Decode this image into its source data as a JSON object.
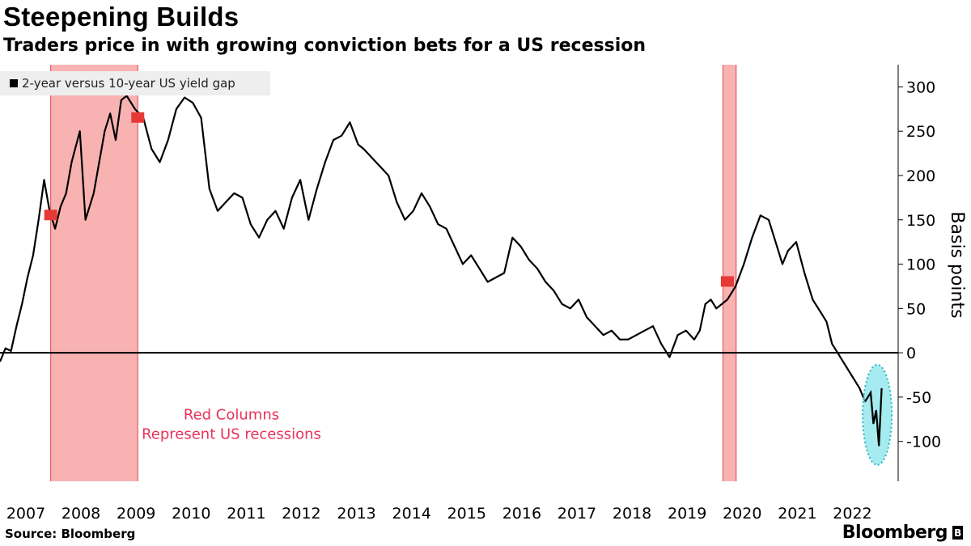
{
  "title": "Steepening Builds",
  "subtitle": "Traders price in with growing conviction bets for a US recession",
  "source": "Source: Bloomberg",
  "brand": "Bloomberg",
  "brand_icon": "B",
  "colors": {
    "line": "#000000",
    "recession_fill": "#f8a5a5",
    "highlight_fill": "#7fe3e8",
    "highlight_stroke": "#29b8c6",
    "annotation": "#e8325a",
    "marker": "#e53935"
  },
  "icons": {
    "recession_marker": "rec-flag-icon",
    "highlight": "dotted-ellipse-highlight"
  },
  "chart_data": {
    "type": "line",
    "title": "Steepening Builds",
    "subtitle": "Traders price in with growing conviction bets for a US recession",
    "ylabel": "Basis points",
    "xlabel": "",
    "ylim": [
      -145,
      325
    ],
    "xlim": [
      2007.0,
      2023.3
    ],
    "yticks": [
      300,
      250,
      200,
      150,
      100,
      50,
      0,
      -50,
      -100
    ],
    "xticks": [
      "2007",
      "2008",
      "2009",
      "2010",
      "2011",
      "2012",
      "2013",
      "2014",
      "2015",
      "2016",
      "2017",
      "2018",
      "2019",
      "2020",
      "2021",
      "2022"
    ],
    "grid": false,
    "legend_position": "top-left",
    "zero_line": true,
    "series": [
      {
        "name": "2-year versus 10-year US yield gap",
        "x": [
          2007.0,
          2007.1,
          2007.2,
          2007.3,
          2007.4,
          2007.5,
          2007.6,
          2007.7,
          2007.8,
          2007.9,
          2008.0,
          2008.1,
          2008.2,
          2008.3,
          2008.45,
          2008.55,
          2008.7,
          2008.8,
          2008.9,
          2009.0,
          2009.1,
          2009.2,
          2009.3,
          2009.45,
          2009.6,
          2009.75,
          2009.9,
          2010.05,
          2010.2,
          2010.35,
          2010.5,
          2010.65,
          2010.8,
          2010.95,
          2011.1,
          2011.25,
          2011.4,
          2011.55,
          2011.7,
          2011.85,
          2012.0,
          2012.15,
          2012.3,
          2012.45,
          2012.6,
          2012.75,
          2012.9,
          2013.05,
          2013.2,
          2013.35,
          2013.5,
          2013.6,
          2013.75,
          2013.9,
          2014.05,
          2014.2,
          2014.35,
          2014.5,
          2014.65,
          2014.8,
          2014.95,
          2015.1,
          2015.25,
          2015.4,
          2015.55,
          2015.7,
          2015.85,
          2016.0,
          2016.15,
          2016.3,
          2016.45,
          2016.6,
          2016.75,
          2016.9,
          2017.05,
          2017.2,
          2017.35,
          2017.5,
          2017.65,
          2017.8,
          2017.95,
          2018.1,
          2018.25,
          2018.4,
          2018.55,
          2018.7,
          2018.85,
          2019.0,
          2019.15,
          2019.3,
          2019.45,
          2019.6,
          2019.7,
          2019.8,
          2019.9,
          2020.0,
          2020.1,
          2020.2,
          2020.35,
          2020.5,
          2020.65,
          2020.8,
          2020.95,
          2021.1,
          2021.2,
          2021.3,
          2021.45,
          2021.6,
          2021.75,
          2021.9,
          2022.0,
          2022.1,
          2022.2,
          2022.3,
          2022.45,
          2022.6,
          2022.7,
          2022.8,
          2022.85,
          2022.9,
          2022.95,
          2023.0
        ],
        "values": [
          -10,
          5,
          2,
          30,
          55,
          85,
          110,
          150,
          195,
          160,
          140,
          165,
          180,
          215,
          250,
          150,
          180,
          215,
          250,
          270,
          240,
          285,
          290,
          275,
          265,
          230,
          215,
          240,
          275,
          288,
          282,
          265,
          185,
          160,
          170,
          180,
          175,
          145,
          130,
          150,
          160,
          140,
          175,
          195,
          150,
          185,
          215,
          240,
          245,
          260,
          235,
          230,
          220,
          210,
          200,
          170,
          150,
          160,
          180,
          165,
          145,
          140,
          120,
          100,
          110,
          95,
          80,
          85,
          90,
          130,
          120,
          105,
          95,
          80,
          70,
          55,
          50,
          60,
          40,
          30,
          20,
          25,
          15,
          15,
          20,
          25,
          30,
          10,
          -5,
          20,
          25,
          15,
          25,
          55,
          60,
          50,
          55,
          60,
          75,
          100,
          130,
          155,
          150,
          120,
          100,
          115,
          125,
          90,
          60,
          45,
          35,
          10,
          0,
          -10,
          -25,
          -40,
          -55,
          -45,
          -80,
          -65,
          -105,
          -40
        ]
      }
    ],
    "recessions": [
      {
        "start": 2007.92,
        "end": 2009.5
      },
      {
        "start": 2020.12,
        "end": 2020.36
      }
    ],
    "annotations": [
      {
        "text": "Red Columns",
        "x": 2011.2,
        "y": -75
      },
      {
        "text": "Represent US recessions",
        "x": 2011.2,
        "y": -97
      }
    ],
    "highlight": {
      "x": 2022.92,
      "y": -70,
      "label": ""
    }
  }
}
